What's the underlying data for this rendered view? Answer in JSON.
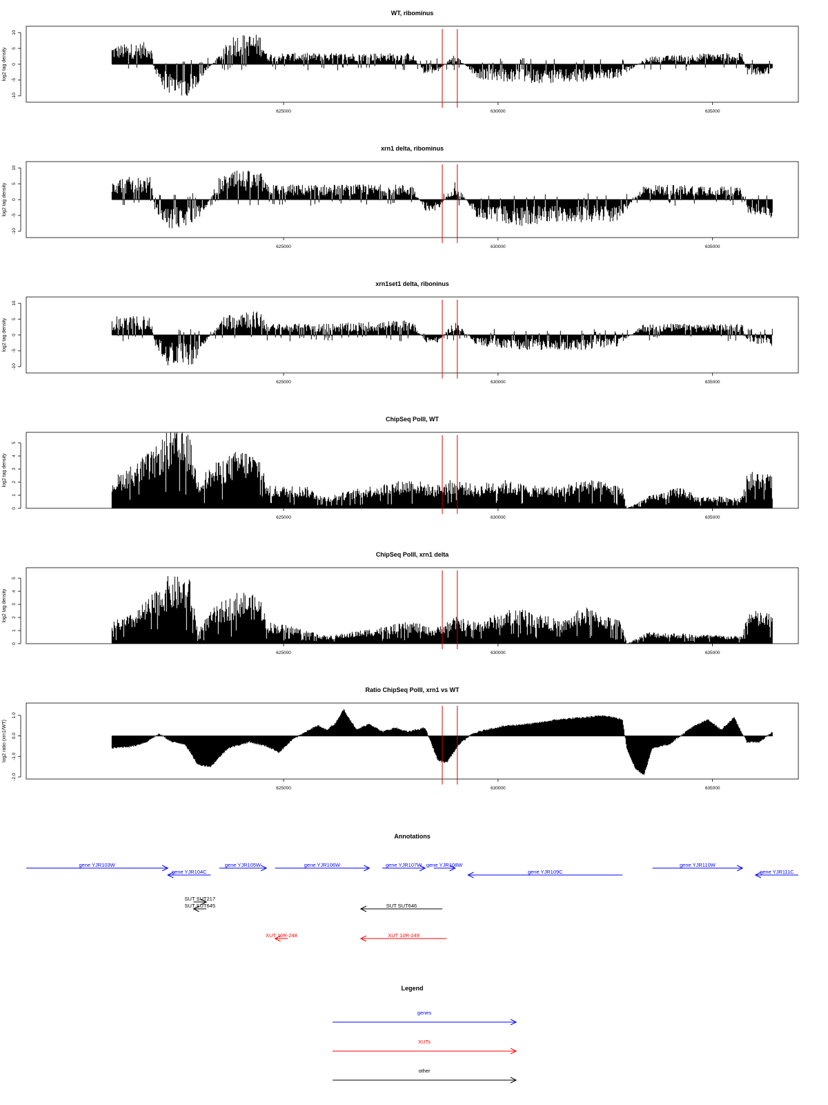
{
  "figure": {
    "red_markers": [
      628700,
      629050
    ]
  },
  "chart_data": [
    {
      "type": "area",
      "title": "WT, ribominus",
      "ylabel": "log2 tag density",
      "xlim": [
        619000,
        637000
      ],
      "ylim": [
        -12,
        12
      ],
      "yticks": [
        -10,
        -5,
        0,
        5,
        10
      ],
      "xticks": [
        625000,
        630000,
        635000
      ],
      "series": [
        {
          "values": [
            [
              621000,
              5
            ],
            [
              621900,
              6
            ],
            [
              622000,
              -2
            ],
            [
              622200,
              -7
            ],
            [
              622500,
              -9
            ],
            [
              622900,
              -8
            ],
            [
              623200,
              -2
            ],
            [
              623600,
              4
            ],
            [
              623800,
              8
            ],
            [
              624500,
              8
            ],
            [
              624600,
              3
            ],
            [
              625000,
              3
            ],
            [
              626000,
              3
            ],
            [
              627000,
              3
            ],
            [
              628000,
              3
            ],
            [
              628300,
              -3
            ],
            [
              628600,
              -2
            ],
            [
              629000,
              3
            ],
            [
              629500,
              -4
            ],
            [
              630500,
              -5
            ],
            [
              631500,
              -5
            ],
            [
              632800,
              -4
            ],
            [
              633500,
              2
            ],
            [
              635000,
              3
            ],
            [
              635700,
              3
            ],
            [
              635800,
              -3
            ],
            [
              636400,
              -3
            ]
          ]
        }
      ]
    },
    {
      "type": "area",
      "title": "xrn1 delta, ribominus",
      "ylabel": "log2 tag density",
      "xlim": [
        619000,
        637000
      ],
      "ylim": [
        -12,
        12
      ],
      "yticks": [
        -10,
        -5,
        0,
        5,
        10
      ],
      "xticks": [
        625000,
        630000,
        635000
      ],
      "series": [
        {
          "values": [
            [
              621000,
              6
            ],
            [
              621900,
              6
            ],
            [
              622000,
              -3
            ],
            [
              622300,
              -8
            ],
            [
              622900,
              -7
            ],
            [
              623200,
              -2
            ],
            [
              623500,
              6
            ],
            [
              624000,
              8
            ],
            [
              624500,
              7
            ],
            [
              624600,
              4
            ],
            [
              626000,
              4
            ],
            [
              628000,
              4
            ],
            [
              628300,
              -3
            ],
            [
              628600,
              -3
            ],
            [
              629000,
              5
            ],
            [
              629500,
              -5
            ],
            [
              630500,
              -7
            ],
            [
              631500,
              -6
            ],
            [
              632800,
              -6
            ],
            [
              633400,
              4
            ],
            [
              635000,
              4
            ],
            [
              635700,
              3
            ],
            [
              635800,
              -4
            ],
            [
              636400,
              -5
            ]
          ]
        }
      ]
    },
    {
      "type": "area",
      "title": "xrn1set1 delta, riboninus",
      "ylabel": "log2 tag density",
      "xlim": [
        619000,
        637000
      ],
      "ylim": [
        -12,
        12
      ],
      "yticks": [
        -10,
        -5,
        0,
        5,
        10
      ],
      "xticks": [
        625000,
        630000,
        635000
      ],
      "series": [
        {
          "values": [
            [
              621000,
              5
            ],
            [
              621900,
              5
            ],
            [
              622000,
              -3
            ],
            [
              622300,
              -8
            ],
            [
              622900,
              -8
            ],
            [
              623200,
              -2
            ],
            [
              623600,
              5
            ],
            [
              624000,
              7
            ],
            [
              624500,
              6
            ],
            [
              624600,
              3
            ],
            [
              626000,
              3
            ],
            [
              628000,
              4
            ],
            [
              628300,
              -2
            ],
            [
              628600,
              -2
            ],
            [
              629000,
              4
            ],
            [
              629500,
              -3
            ],
            [
              630500,
              -4
            ],
            [
              632000,
              -4
            ],
            [
              632800,
              -3
            ],
            [
              633400,
              3
            ],
            [
              635000,
              3
            ],
            [
              635700,
              3
            ],
            [
              635800,
              -2
            ],
            [
              636400,
              -3
            ]
          ]
        }
      ]
    },
    {
      "type": "area",
      "title": "ChipSeq PolII, WT",
      "ylabel": "log2 tag density",
      "xlim": [
        619000,
        637000
      ],
      "ylim": [
        0,
        5.8
      ],
      "yticks": [
        0,
        1,
        2,
        3,
        4,
        5
      ],
      "xticks": [
        625000,
        630000,
        635000
      ],
      "series": [
        {
          "values": [
            [
              621000,
              2
            ],
            [
              621500,
              3
            ],
            [
              622000,
              4
            ],
            [
              622300,
              5.2
            ],
            [
              622800,
              5
            ],
            [
              623000,
              2
            ],
            [
              623400,
              3
            ],
            [
              624000,
              4
            ],
            [
              624500,
              3.5
            ],
            [
              624600,
              1.5
            ],
            [
              625500,
              1.5
            ],
            [
              626000,
              0.8
            ],
            [
              627000,
              1.5
            ],
            [
              628000,
              2
            ],
            [
              628500,
              1.5
            ],
            [
              629000,
              2
            ],
            [
              629500,
              1.5
            ],
            [
              630000,
              2
            ],
            [
              630800,
              1.5
            ],
            [
              631500,
              1.5
            ],
            [
              632000,
              2
            ],
            [
              632900,
              1.5
            ],
            [
              633000,
              0
            ],
            [
              633500,
              0.8
            ],
            [
              634300,
              1.5
            ],
            [
              634600,
              0.8
            ],
            [
              635700,
              0.8
            ],
            [
              635800,
              2.5
            ],
            [
              636400,
              2.3
            ]
          ]
        }
      ]
    },
    {
      "type": "area",
      "title": "ChipSeq PolII, xrn1 delta",
      "ylabel": "log2 tag density",
      "xlim": [
        619000,
        637000
      ],
      "ylim": [
        0,
        5.8
      ],
      "yticks": [
        0,
        1,
        2,
        3,
        4,
        5
      ],
      "xticks": [
        625000,
        630000,
        635000
      ],
      "series": [
        {
          "values": [
            [
              621000,
              1.5
            ],
            [
              621500,
              2
            ],
            [
              622000,
              3.5
            ],
            [
              622300,
              4.5
            ],
            [
              622800,
              4.5
            ],
            [
              623000,
              1
            ],
            [
              623400,
              2.5
            ],
            [
              624000,
              3.6
            ],
            [
              624500,
              3
            ],
            [
              624600,
              1.5
            ],
            [
              625500,
              1
            ],
            [
              626000,
              0.5
            ],
            [
              627000,
              1
            ],
            [
              628000,
              1.5
            ],
            [
              628500,
              1
            ],
            [
              629000,
              1.8
            ],
            [
              629500,
              1.5
            ],
            [
              630000,
              2
            ],
            [
              630500,
              2.5
            ],
            [
              631000,
              2
            ],
            [
              631500,
              1.5
            ],
            [
              632000,
              2.5
            ],
            [
              632900,
              1.5
            ],
            [
              633000,
              0
            ],
            [
              633500,
              0.8
            ],
            [
              635700,
              0.5
            ],
            [
              635800,
              2.3
            ],
            [
              636400,
              2
            ]
          ]
        }
      ]
    },
    {
      "type": "area",
      "title": "Ratio ChipSeq PolII, xrn1 vs WT",
      "ylabel": "log2 ratio (xrn1/WT)",
      "xlim": [
        619000,
        637000
      ],
      "ylim": [
        -2.1,
        1.6
      ],
      "yticks": [
        -2.0,
        -1.0,
        0.0,
        1.0
      ],
      "xticks": [
        625000,
        630000,
        635000
      ],
      "series": [
        {
          "values": [
            [
              621000,
              -0.6
            ],
            [
              621500,
              -0.5
            ],
            [
              621800,
              -0.3
            ],
            [
              622100,
              0.1
            ],
            [
              622400,
              -0.3
            ],
            [
              622700,
              -0.4
            ],
            [
              623000,
              -1.4
            ],
            [
              623300,
              -1.5
            ],
            [
              623700,
              -0.6
            ],
            [
              624200,
              -0.3
            ],
            [
              624600,
              -0.5
            ],
            [
              624900,
              -0.8
            ],
            [
              625200,
              -0.2
            ],
            [
              625500,
              0.2
            ],
            [
              625800,
              0.5
            ],
            [
              626000,
              0.3
            ],
            [
              626200,
              0.6
            ],
            [
              626400,
              1.3
            ],
            [
              626700,
              0.3
            ],
            [
              627000,
              0.6
            ],
            [
              627300,
              0.2
            ],
            [
              627600,
              0.4
            ],
            [
              627900,
              0.2
            ],
            [
              628300,
              0.4
            ],
            [
              628600,
              -1.2
            ],
            [
              628800,
              -1.3
            ],
            [
              629100,
              -0.4
            ],
            [
              629400,
              0.1
            ],
            [
              629700,
              0.3
            ],
            [
              630200,
              0.5
            ],
            [
              630800,
              0.6
            ],
            [
              631400,
              0.8
            ],
            [
              632000,
              0.9
            ],
            [
              632500,
              1.0
            ],
            [
              632900,
              0.8
            ],
            [
              633000,
              -0.6
            ],
            [
              633200,
              -1.6
            ],
            [
              633400,
              -1.9
            ],
            [
              633600,
              -0.6
            ],
            [
              634000,
              -0.4
            ],
            [
              634500,
              0.4
            ],
            [
              634900,
              0.8
            ],
            [
              635200,
              0.3
            ],
            [
              635500,
              0.9
            ],
            [
              635800,
              -0.3
            ],
            [
              636100,
              -0.3
            ],
            [
              636400,
              0.2
            ]
          ]
        }
      ]
    }
  ],
  "annotations": {
    "title": "Annotations",
    "genes": [
      {
        "label": "gene YJR103W",
        "x1": 619000,
        "x2": 622300,
        "dir": "right",
        "row": 0
      },
      {
        "label": "gene YJR104C",
        "x1": 622300,
        "x2": 623300,
        "dir": "left",
        "row": 1
      },
      {
        "label": "gene YJR105W",
        "x1": 623500,
        "x2": 624600,
        "dir": "right",
        "row": 0
      },
      {
        "label": "gene YJR106W",
        "x1": 624800,
        "x2": 627000,
        "dir": "right",
        "row": 0
      },
      {
        "label": "gene YJR107W",
        "x1": 627300,
        "x2": 628300,
        "dir": "right",
        "row": 0
      },
      {
        "label": "gene YJR108W",
        "x1": 628500,
        "x2": 629000,
        "dir": "right",
        "row": 0
      },
      {
        "label": "gene YJR109C",
        "x1": 629300,
        "x2": 632900,
        "dir": "left",
        "row": 1
      },
      {
        "label": "gene YJR110W",
        "x1": 633600,
        "x2": 635700,
        "dir": "right",
        "row": 0
      },
      {
        "label": "gene YJR111C",
        "x1": 636000,
        "x2": 637000,
        "dir": "left",
        "row": 1
      }
    ],
    "other": [
      {
        "label": "SUT SUT217",
        "x1": 622900,
        "x2": 623200,
        "dir": "right",
        "row": 0
      },
      {
        "label": "SUT SUT645",
        "x1": 622900,
        "x2": 623200,
        "dir": "left",
        "row": 1
      },
      {
        "label": "SUT SUT646",
        "x1": 626800,
        "x2": 628700,
        "dir": "left",
        "row": 1
      }
    ],
    "xuts": [
      {
        "label": "XUT 10R-248",
        "x1": 624800,
        "x2": 625100,
        "dir": "left"
      },
      {
        "label": "XUT 10R-249",
        "x1": 626800,
        "x2": 628800,
        "dir": "left"
      }
    ]
  },
  "legend": {
    "title": "Legend",
    "items": [
      {
        "label": "genes",
        "color": "#0000ff"
      },
      {
        "label": "XUTs",
        "color": "#ff0000"
      },
      {
        "label": "other",
        "color": "#000000"
      }
    ]
  }
}
